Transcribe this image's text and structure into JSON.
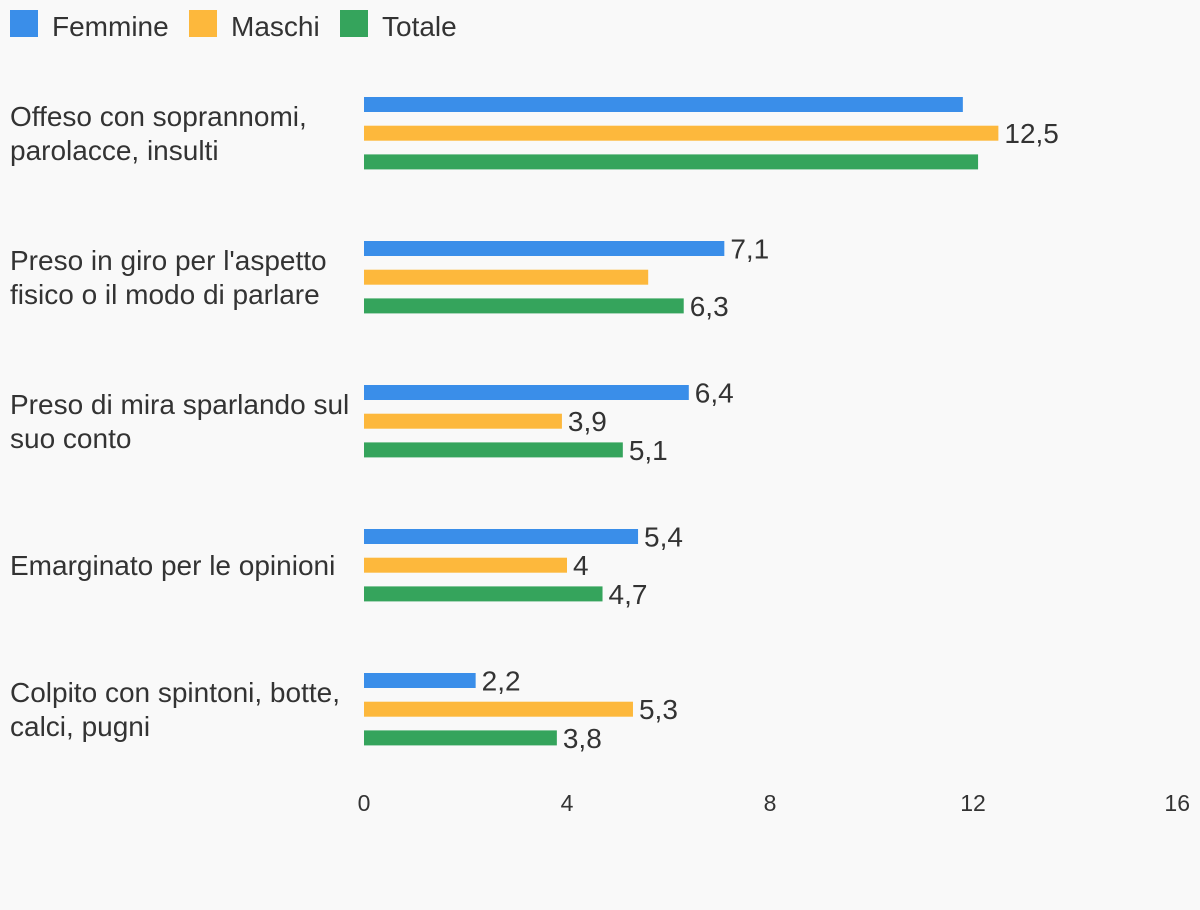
{
  "chart_data": {
    "type": "bar",
    "orientation": "horizontal",
    "legend_position": "top-left",
    "grid": false,
    "xlim": [
      0,
      16
    ],
    "x_ticks": [
      0,
      4,
      8,
      12,
      16
    ],
    "x_tick_labels": [
      "0",
      "4",
      "8",
      "12",
      "16"
    ],
    "categories": [
      [
        "Offeso con soprannomi,",
        "parolacce, insulti"
      ],
      [
        "Preso in giro per l'aspetto",
        "fisico o il modo di parlare"
      ],
      [
        "Preso di mira sparlando sul",
        "suo conto"
      ],
      [
        "Emarginato per le opinioni"
      ],
      [
        "Colpito con spintoni, botte,",
        "calci, pugni"
      ]
    ],
    "series": [
      {
        "name": "Femmine",
        "color": "#3a8ee9",
        "values": [
          11.8,
          7.1,
          6.4,
          5.4,
          2.2
        ],
        "labels": [
          "",
          "7,1",
          "6,4",
          "5,4",
          "2,2"
        ]
      },
      {
        "name": "Maschi",
        "color": "#fdb83c",
        "values": [
          12.5,
          5.6,
          3.9,
          4.0,
          5.3
        ],
        "labels": [
          "12,5",
          "",
          "3,9",
          "4",
          "5,3"
        ]
      },
      {
        "name": "Totale",
        "color": "#35a45c",
        "values": [
          12.1,
          6.3,
          5.1,
          4.7,
          3.8
        ],
        "labels": [
          "",
          "6,3",
          "5,1",
          "4,7",
          "3,8"
        ]
      }
    ]
  }
}
